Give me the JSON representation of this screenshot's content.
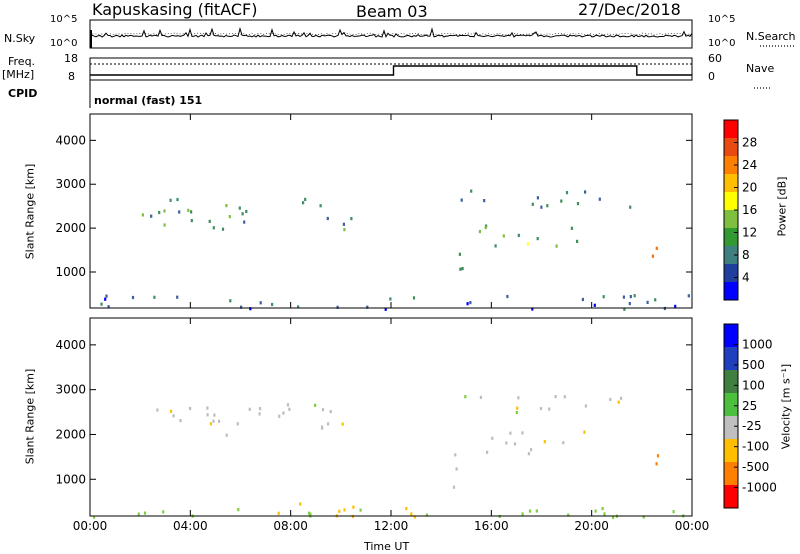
{
  "header": {
    "station": "Kapuskasing (fitACF)",
    "beam": "Beam 03",
    "date": "27/Dec/2018"
  },
  "top_panel": {
    "nsky_label": "N.Sky",
    "nsky_ticks": [
      "10^5",
      "10^0"
    ],
    "nsearch_label": "N.Search",
    "nsearch_ticks": [
      "10^5",
      "10^0"
    ],
    "freq_label": "Freq.",
    "freq_unit": "[MHz]",
    "freq_ticks": [
      "18",
      "8"
    ],
    "nave_label": "Nave",
    "nave_ticks": [
      "60",
      "0"
    ],
    "cpid_label": "CPID",
    "cpid_value": "normal (fast) 151"
  },
  "chart_data": [
    {
      "type": "heatmap",
      "title": "",
      "xlabel": "",
      "ylabel": "Slant Range [km]",
      "x_ticks": [
        "00:00",
        "04:00",
        "08:00",
        "12:00",
        "16:00",
        "20:00",
        "00:00"
      ],
      "y_ticks": [
        1000,
        2000,
        3000,
        4000
      ],
      "xlim_hours": [
        0,
        24
      ],
      "ylim_km": [
        180,
        4600
      ],
      "colorbar": {
        "label": "Power [dB]",
        "ticks": [
          "28",
          "24",
          "20",
          "16",
          "12",
          "8",
          "4"
        ],
        "colors": [
          "#ff0000",
          "#e94a10",
          "#ff7f00",
          "#ffbf00",
          "#ffff00",
          "#7fbf3f",
          "#339933",
          "#3f7f7f",
          "#1f3f9f",
          "#0000ff"
        ]
      },
      "regions": [
        {
          "t0": 2.0,
          "t1": 10.5,
          "r0": 2000,
          "r1": 2700,
          "value": 10
        },
        {
          "t0": 14.3,
          "t1": 15.0,
          "r0": 800,
          "r1": 1600,
          "value": 12
        },
        {
          "t0": 14.5,
          "t1": 21.7,
          "r0": 2500,
          "r1": 2900,
          "value": 8
        },
        {
          "t0": 15.5,
          "t1": 20.5,
          "r0": 1600,
          "r1": 2100,
          "value": 13
        },
        {
          "t0": 21.7,
          "t1": 23.0,
          "r0": 1200,
          "r1": 1600,
          "value": 24
        },
        {
          "t0": 0.0,
          "t1": 24.0,
          "r0": 180,
          "r1": 500,
          "value": 6
        }
      ]
    },
    {
      "type": "heatmap",
      "title": "",
      "xlabel": "Time UT",
      "ylabel": "Slant Range [km]",
      "x_ticks": [
        "00:00",
        "04:00",
        "08:00",
        "12:00",
        "16:00",
        "20:00",
        "00:00"
      ],
      "y_ticks": [
        1000,
        2000,
        3000,
        4000
      ],
      "xlim_hours": [
        0,
        24
      ],
      "ylim_km": [
        180,
        4600
      ],
      "colorbar": {
        "label": "Velocity [m s⁻¹]",
        "ticks": [
          "1000",
          "500",
          "100",
          "25",
          "-25",
          "-100",
          "-500",
          "-1000"
        ],
        "colors": [
          "#0000ff",
          "#1f3fbf",
          "#3f7f3f",
          "#4cbf3f",
          "#bfbfbf",
          "#ffbf00",
          "#ff7f00",
          "#ff0000"
        ]
      },
      "regions": [
        {
          "t0": 2.0,
          "t1": 10.5,
          "r0": 2000,
          "r1": 2700,
          "value": 0
        },
        {
          "t0": 14.3,
          "t1": 15.0,
          "r0": 800,
          "r1": 1600,
          "value": 0
        },
        {
          "t0": 14.5,
          "t1": 21.7,
          "r0": 2500,
          "r1": 2900,
          "value": 0
        },
        {
          "t0": 15.5,
          "t1": 20.5,
          "r0": 1600,
          "r1": 2100,
          "value": 0
        },
        {
          "t0": 21.7,
          "t1": 23.0,
          "r0": 1200,
          "r1": 1600,
          "value": -150
        },
        {
          "t0": 7.0,
          "t1": 14.0,
          "r0": 180,
          "r1": 500,
          "value": -60
        },
        {
          "t0": 0.0,
          "t1": 24.0,
          "r0": 180,
          "r1": 400,
          "value": 60
        }
      ]
    }
  ]
}
